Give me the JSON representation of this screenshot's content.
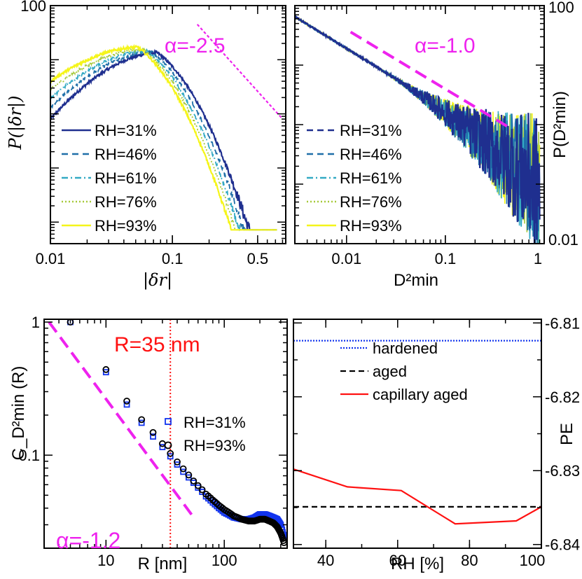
{
  "colors": {
    "rh31": "#1f2f8f",
    "rh46": "#1f6fa8",
    "rh61": "#33aac4",
    "rh76": "#a6c93a",
    "rh93": "#f5f51a",
    "magenta": "#ee22ee",
    "red": "#ff1111",
    "blue": "#1133ee",
    "black": "#000000"
  },
  "chart_data": [
    {
      "type": "line",
      "panel": "top-left",
      "ylabel": "P(|δr|)",
      "xlabel": "|δr|",
      "xscale": "log",
      "yscale": "log",
      "xlim": [
        0.01,
        0.85
      ],
      "ylim": [
        0.004,
        100
      ],
      "ytick_labels": [
        "100"
      ],
      "ytick_values": [
        100
      ],
      "xtick_labels": [
        "0.01",
        "0.1",
        "0.5"
      ],
      "xtick_values": [
        0.01,
        0.1,
        0.5
      ],
      "annotation": "α=-2.5",
      "series": [
        {
          "name": "RH=31%",
          "style": "solid",
          "color_key": "rh31",
          "peak_x": 0.075,
          "peak_y": 13.5,
          "low_y": 0.8
        },
        {
          "name": "RH=46%",
          "style": "dashed",
          "color_key": "rh46",
          "peak_x": 0.068,
          "peak_y": 13.8,
          "low_y": 1.3
        },
        {
          "name": "RH=61%",
          "style": "dashdot",
          "color_key": "rh61",
          "peak_x": 0.062,
          "peak_y": 14.5,
          "low_y": 1.9
        },
        {
          "name": "RH=76%",
          "style": "dotted",
          "color_key": "rh76",
          "peak_x": 0.057,
          "peak_y": 15.5,
          "low_y": 2.8
        },
        {
          "name": "RH=93%",
          "style": "solid",
          "color_key": "rh93",
          "peak_x": 0.052,
          "peak_y": 17.0,
          "low_y": 4.0
        }
      ],
      "reference_line": {
        "slope": -2.5,
        "x_range": [
          0.16,
          0.8
        ],
        "y_at_start": 45
      }
    },
    {
      "type": "line",
      "panel": "top-right",
      "ylabel": "P(D²min)",
      "xlabel": "D²min",
      "xscale": "log",
      "yscale": "log",
      "xlim": [
        0.003,
        1.0
      ],
      "ylim": [
        0.01,
        100
      ],
      "ytick_labels": [
        "100",
        "0.01"
      ],
      "ytick_values": [
        100,
        0.01
      ],
      "xtick_labels": [
        "0.01",
        "0.1",
        "1"
      ],
      "xtick_values": [
        0.01,
        0.1,
        1
      ],
      "annotation": "α=-1.0",
      "series": [
        {
          "name": "RH=31%",
          "style": "dashed",
          "color_key": "rh31"
        },
        {
          "name": "RH=46%",
          "style": "dashed",
          "color_key": "rh46"
        },
        {
          "name": "RH=61%",
          "style": "dashdot",
          "color_key": "rh61"
        },
        {
          "name": "RH=76%",
          "style": "dotted",
          "color_key": "rh76"
        },
        {
          "name": "RH=93%",
          "style": "solid",
          "color_key": "rh93"
        }
      ],
      "data_line": {
        "x_range": [
          0.003,
          0.9
        ],
        "y_start": 65,
        "slope": -1.0
      },
      "reference_line": {
        "slope": -1.0,
        "x_range": [
          0.011,
          0.42
        ],
        "y_at_start": 36
      }
    },
    {
      "type": "scatter",
      "panel": "bottom-left",
      "ylabel": "C_D²min (R)",
      "xlabel": "R [nm]",
      "xscale": "log",
      "yscale": "log",
      "xlim": [
        3.0,
        340
      ],
      "ylim": [
        0.02,
        1.05
      ],
      "ytick_labels": [
        "1",
        "0.1"
      ],
      "ytick_values": [
        1,
        0.1
      ],
      "xtick_labels": [
        "10",
        "100"
      ],
      "xtick_values": [
        10,
        100
      ],
      "annotations": [
        "α=-1.2",
        "R=35 nm"
      ],
      "vline_x": 35,
      "series": [
        {
          "name": "RH=31%",
          "marker": "square",
          "color_key": "blue",
          "x": [
            5,
            10,
            15,
            20,
            25,
            30,
            35,
            40,
            45,
            50,
            55,
            60,
            65,
            70,
            80,
            90,
            100,
            120,
            140,
            160,
            180,
            200,
            220,
            240,
            260,
            280,
            300,
            320
          ],
          "y": [
            1.0,
            0.42,
            0.24,
            0.175,
            0.138,
            0.115,
            0.098,
            0.085,
            0.075,
            0.068,
            0.062,
            0.057,
            0.053,
            0.049,
            0.044,
            0.04,
            0.037,
            0.034,
            0.033,
            0.033,
            0.034,
            0.036,
            0.036,
            0.035,
            0.034,
            0.033,
            0.03,
            0.024
          ]
        },
        {
          "name": "RH=93%",
          "marker": "circle",
          "color_key": "black",
          "x": [
            5,
            10,
            15,
            20,
            25,
            30,
            35,
            40,
            45,
            50,
            55,
            60,
            65,
            70,
            80,
            90,
            100,
            120,
            140,
            160,
            180,
            200,
            220,
            240,
            260,
            280,
            300,
            320
          ],
          "y": [
            1.0,
            0.44,
            0.255,
            0.185,
            0.148,
            0.122,
            0.103,
            0.089,
            0.079,
            0.071,
            0.064,
            0.059,
            0.055,
            0.051,
            0.046,
            0.042,
            0.039,
            0.035,
            0.033,
            0.032,
            0.032,
            0.033,
            0.033,
            0.032,
            0.031,
            0.029,
            0.026,
            0.022
          ]
        }
      ],
      "reference_line": {
        "slope": -1.2,
        "x_range": [
          3.3,
          56
        ],
        "y_at_start": 1.0
      }
    },
    {
      "type": "line",
      "panel": "bottom-right",
      "ylabel": "PE",
      "xlabel": "RH [%]",
      "xlim": [
        31,
        100
      ],
      "ylim": [
        -6.8405,
        -6.8095
      ],
      "ytick_labels": [
        "-6.81",
        "-6.82",
        "-6.83",
        "-6.84"
      ],
      "ytick_values": [
        -6.81,
        -6.82,
        -6.83,
        -6.84
      ],
      "xtick_labels": [
        "40",
        "60",
        "80",
        "100"
      ],
      "xtick_values": [
        40,
        60,
        80,
        100
      ],
      "series": [
        {
          "name": "hardened",
          "style": "dotted",
          "color_key": "blue",
          "x": [
            31,
            100
          ],
          "y": [
            -6.8124,
            -6.8124
          ]
        },
        {
          "name": "aged",
          "style": "dashed",
          "color_key": "black",
          "x": [
            31,
            100
          ],
          "y": [
            -6.8349,
            -6.8349
          ]
        },
        {
          "name": "capillary aged",
          "style": "solid",
          "color_key": "red",
          "x": [
            31,
            46,
            61,
            76,
            93,
            100
          ],
          "y": [
            -6.8298,
            -6.8322,
            -6.8327,
            -6.8372,
            -6.8368,
            -6.8349
          ]
        }
      ]
    }
  ]
}
